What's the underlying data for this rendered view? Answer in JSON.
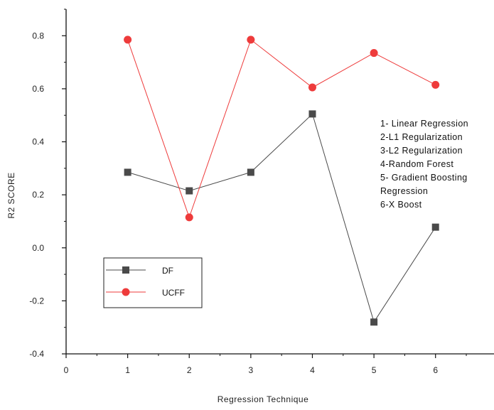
{
  "chart_data": {
    "type": "line",
    "xlabel": "Regression Technique",
    "ylabel": "R2 SCORE",
    "xlim": [
      0,
      6.95
    ],
    "ylim": [
      -0.4,
      0.9
    ],
    "x_ticks": [
      "0",
      "1",
      "2",
      "3",
      "4",
      "5",
      "6"
    ],
    "y_ticks": [
      "-0.4",
      "-0.2",
      "0.0",
      "0.2",
      "0.4",
      "0.6",
      "0.8"
    ],
    "grid": false,
    "legend_position": "bottom-left",
    "x": [
      1,
      2,
      3,
      4,
      5,
      6
    ],
    "series": [
      {
        "name": "DF",
        "values": [
          0.285,
          0.215,
          0.285,
          0.505,
          -0.28,
          0.078
        ],
        "color": "#4a4a4a",
        "marker": "square"
      },
      {
        "name": "UCFF",
        "values": [
          0.785,
          0.115,
          0.785,
          0.605,
          0.735,
          0.615
        ],
        "color": "#ee3b3b",
        "marker": "circle"
      }
    ],
    "annotations": [
      "1- Linear Regression",
      "2-L1 Regularization",
      "3-L2 Regularization",
      "4-Random Forest",
      "5- Gradient Boosting",
      "Regression",
      "6-X Boost"
    ]
  }
}
